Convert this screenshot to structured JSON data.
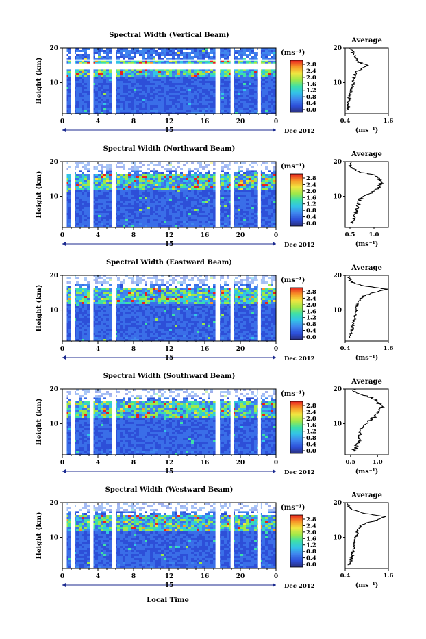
{
  "figure": {
    "x_axis_label": "Local Time",
    "date_label": "Dec 2012",
    "day_label": "15",
    "y_axis_label": "Height (km)",
    "unit_label": "(ms⁻¹)",
    "average_title": "Average",
    "average_unit": "(ms⁻¹)",
    "colorbar_ticks": [
      "2.8",
      "2.4",
      "2.0",
      "1.6",
      "1.2",
      "0.8",
      "0.4",
      "0.0"
    ]
  },
  "chart_data": [
    {
      "type": "heatmap",
      "title": "Spectral Width (Vertical Beam)",
      "ylabel": "Height (km)",
      "xlabel": "Local Time",
      "x_ticks": [
        "0",
        "4",
        "8",
        "12",
        "16",
        "20",
        "0"
      ],
      "y_ticks": [
        "20",
        "10"
      ],
      "xlim": [
        0,
        24
      ],
      "ylim": [
        1,
        20
      ],
      "colorbar_range": [
        0.0,
        3.0
      ],
      "data_gaps_hours": [
        [
          0,
          0.5
        ],
        [
          1.0,
          1.4
        ],
        [
          3.1,
          3.5
        ],
        [
          5.6,
          6.0
        ],
        [
          17.2,
          17.7
        ],
        [
          18.9,
          19.3
        ],
        [
          21.9,
          22.3
        ]
      ],
      "empty_height_bands_km": [
        [
          13.8,
          15.5
        ],
        [
          16.3,
          16.7
        ]
      ],
      "average": {
        "x_ticks": [
          "0.4",
          "1.6"
        ],
        "xlim": [
          0.4,
          1.6
        ],
        "profile": {
          "height": [
            2,
            3,
            4,
            5,
            6,
            7,
            8,
            9,
            10,
            11,
            12,
            13,
            14,
            15,
            16,
            17,
            18,
            19,
            20
          ],
          "value": [
            0.45,
            0.5,
            0.48,
            0.5,
            0.52,
            0.55,
            0.56,
            0.6,
            0.62,
            0.64,
            0.66,
            0.7,
            0.85,
            1.0,
            0.75,
            0.7,
            0.65,
            0.6,
            0.55
          ]
        }
      }
    },
    {
      "type": "heatmap",
      "title": "Spectral Width (Northward Beam)",
      "ylabel": "Height (km)",
      "xlabel": "Local Time",
      "x_ticks": [
        "0",
        "4",
        "8",
        "12",
        "16",
        "20",
        "0"
      ],
      "y_ticks": [
        "20",
        "10"
      ],
      "xlim": [
        0,
        24
      ],
      "ylim": [
        1,
        20
      ],
      "colorbar_range": [
        0.0,
        3.0
      ],
      "data_gaps_hours": [
        [
          0,
          0.5
        ],
        [
          1.0,
          1.4
        ],
        [
          3.1,
          3.5
        ],
        [
          5.6,
          6.0
        ],
        [
          17.2,
          17.7
        ],
        [
          18.9,
          19.3
        ],
        [
          21.9,
          22.3
        ]
      ],
      "empty_height_bands_km": [
        [
          17.5,
          20
        ]
      ],
      "average": {
        "x_ticks": [
          "0.5",
          "1.0"
        ],
        "xlim": [
          0.4,
          1.3
        ],
        "profile": {
          "height": [
            2,
            3,
            4,
            5,
            6,
            7,
            8,
            9,
            10,
            11,
            12,
            13,
            14,
            15,
            16,
            17,
            18,
            19,
            20
          ],
          "value": [
            0.55,
            0.58,
            0.6,
            0.62,
            0.62,
            0.65,
            0.68,
            0.7,
            0.75,
            0.95,
            1.05,
            1.12,
            1.15,
            1.1,
            1.05,
            0.7,
            0.55,
            0.5,
            0.5
          ]
        }
      }
    },
    {
      "type": "heatmap",
      "title": "Spectral Width (Eastward Beam)",
      "ylabel": "Height (km)",
      "xlabel": "Local Time",
      "x_ticks": [
        "0",
        "4",
        "8",
        "12",
        "16",
        "20",
        "0"
      ],
      "y_ticks": [
        "20",
        "10"
      ],
      "xlim": [
        0,
        24
      ],
      "ylim": [
        1,
        20
      ],
      "colorbar_range": [
        0.0,
        3.0
      ],
      "data_gaps_hours": [
        [
          0,
          0.5
        ],
        [
          1.0,
          1.4
        ],
        [
          3.1,
          3.5
        ],
        [
          5.6,
          6.0
        ],
        [
          17.2,
          17.7
        ],
        [
          18.9,
          19.3
        ],
        [
          21.9,
          22.3
        ]
      ],
      "empty_height_bands_km": [
        [
          17.5,
          20
        ]
      ],
      "average": {
        "x_ticks": [
          "0.4",
          "1.6"
        ],
        "xlim": [
          0.4,
          1.6
        ],
        "profile": {
          "height": [
            2,
            3,
            4,
            5,
            6,
            7,
            8,
            9,
            10,
            11,
            12,
            13,
            14,
            15,
            16,
            17,
            18,
            19,
            20
          ],
          "value": [
            0.5,
            0.55,
            0.58,
            0.6,
            0.62,
            0.65,
            0.66,
            0.68,
            0.7,
            0.72,
            0.75,
            0.8,
            0.9,
            1.2,
            1.55,
            0.9,
            0.6,
            0.5,
            0.48
          ]
        }
      }
    },
    {
      "type": "heatmap",
      "title": "Spectral Width (Southward Beam)",
      "ylabel": "Height (km)",
      "xlabel": "Local Time",
      "x_ticks": [
        "0",
        "4",
        "8",
        "12",
        "16",
        "20",
        "0"
      ],
      "y_ticks": [
        "20",
        "10"
      ],
      "xlim": [
        0,
        24
      ],
      "ylim": [
        1,
        20
      ],
      "colorbar_range": [
        0.0,
        3.0
      ],
      "data_gaps_hours": [
        [
          0,
          0.5
        ],
        [
          1.0,
          1.4
        ],
        [
          3.1,
          3.5
        ],
        [
          5.6,
          6.0
        ],
        [
          17.2,
          17.7
        ],
        [
          18.9,
          19.3
        ],
        [
          21.9,
          22.3
        ]
      ],
      "empty_height_bands_km": [
        [
          17.5,
          20
        ]
      ],
      "average": {
        "x_ticks": [
          "0.5",
          "1.0"
        ],
        "xlim": [
          0.4,
          1.2
        ],
        "profile": {
          "height": [
            2,
            3,
            4,
            5,
            6,
            7,
            8,
            9,
            10,
            11,
            12,
            13,
            14,
            15,
            16,
            17,
            18,
            19,
            20
          ],
          "value": [
            0.55,
            0.6,
            0.62,
            0.65,
            0.66,
            0.68,
            0.7,
            0.72,
            0.78,
            0.85,
            0.95,
            1.0,
            1.05,
            1.08,
            1.0,
            0.95,
            0.8,
            0.6,
            0.55
          ]
        }
      }
    },
    {
      "type": "heatmap",
      "title": "Spectral Width (Westward Beam)",
      "ylabel": "Height (km)",
      "xlabel": "Local Time",
      "x_ticks": [
        "0",
        "4",
        "8",
        "12",
        "16",
        "20",
        "0"
      ],
      "y_ticks": [
        "20",
        "10"
      ],
      "xlim": [
        0,
        24
      ],
      "ylim": [
        1,
        20
      ],
      "colorbar_range": [
        0.0,
        3.0
      ],
      "data_gaps_hours": [
        [
          0,
          0.5
        ],
        [
          1.0,
          1.4
        ],
        [
          3.1,
          3.5
        ],
        [
          5.6,
          6.0
        ],
        [
          17.2,
          17.7
        ],
        [
          18.9,
          19.3
        ],
        [
          21.9,
          22.3
        ]
      ],
      "empty_height_bands_km": [
        [
          17.5,
          20
        ]
      ],
      "average": {
        "x_ticks": [
          "0.4",
          "1.6"
        ],
        "xlim": [
          0.4,
          1.6
        ],
        "profile": {
          "height": [
            2,
            3,
            4,
            5,
            6,
            7,
            8,
            9,
            10,
            11,
            12,
            13,
            14,
            15,
            16,
            17,
            18,
            19,
            20
          ],
          "value": [
            0.5,
            0.55,
            0.58,
            0.6,
            0.62,
            0.63,
            0.65,
            0.68,
            0.7,
            0.72,
            0.75,
            0.8,
            0.95,
            1.3,
            1.5,
            0.9,
            0.6,
            0.5,
            0.48
          ]
        }
      }
    }
  ]
}
